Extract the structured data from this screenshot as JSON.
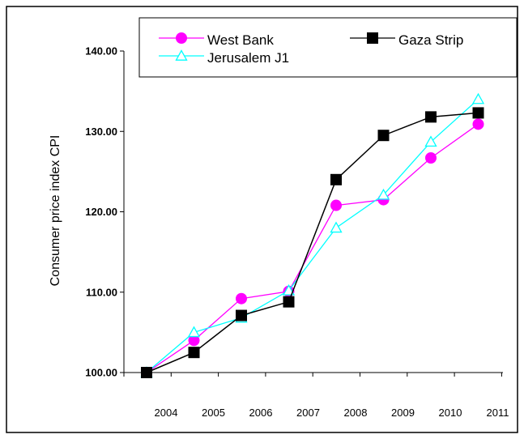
{
  "chart_data": {
    "type": "line",
    "title": "",
    "xlabel": "",
    "ylabel": "Consumer price index CPI",
    "categories": [
      "2004",
      "2005",
      "2006",
      "2007",
      "2008",
      "2009",
      "2010",
      "2011"
    ],
    "ylim": [
      100,
      140
    ],
    "yticks": [
      "100.00",
      "110.00",
      "120.00",
      "130.00",
      "140.00"
    ],
    "grid": false,
    "legend_position": "top",
    "series": [
      {
        "name": "West Bank",
        "color": "#ff00ff",
        "marker": "circle",
        "values": [
          100.0,
          104.0,
          109.2,
          110.1,
          120.8,
          121.5,
          126.7,
          130.9
        ]
      },
      {
        "name": "Gaza Strip",
        "color": "#000000",
        "marker": "square",
        "values": [
          100.0,
          102.5,
          107.1,
          108.8,
          124.0,
          129.5,
          131.8,
          132.3
        ]
      },
      {
        "name": "Jerusalem J1",
        "color": "#00ffff",
        "marker": "triangle",
        "values": [
          100.0,
          105.0,
          106.8,
          110.2,
          118.0,
          122.1,
          128.7,
          134.0
        ]
      }
    ]
  }
}
